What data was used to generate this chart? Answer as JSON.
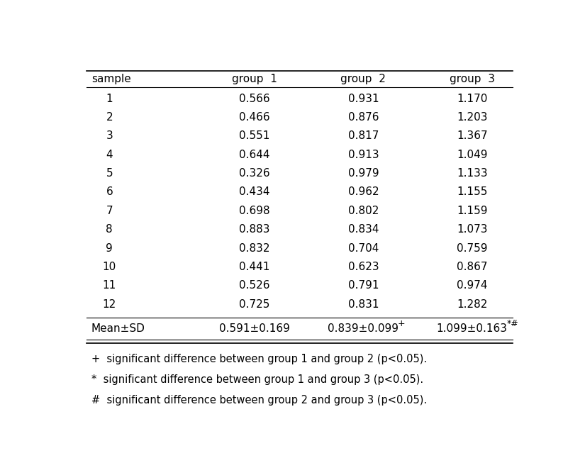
{
  "headers": [
    "sample",
    "group  1",
    "group  2",
    "group  3"
  ],
  "rows": [
    [
      "1",
      "0.566",
      "0.931",
      "1.170"
    ],
    [
      "2",
      "0.466",
      "0.876",
      "1.203"
    ],
    [
      "3",
      "0.551",
      "0.817",
      "1.367"
    ],
    [
      "4",
      "0.644",
      "0.913",
      "1.049"
    ],
    [
      "5",
      "0.326",
      "0.979",
      "1.133"
    ],
    [
      "6",
      "0.434",
      "0.962",
      "1.155"
    ],
    [
      "7",
      "0.698",
      "0.802",
      "1.159"
    ],
    [
      "8",
      "0.883",
      "0.834",
      "1.073"
    ],
    [
      "9",
      "0.832",
      "0.704",
      "0.759"
    ],
    [
      "10",
      "0.441",
      "0.623",
      "0.867"
    ],
    [
      "11",
      "0.526",
      "0.791",
      "0.974"
    ],
    [
      "12",
      "0.725",
      "0.831",
      "1.282"
    ]
  ],
  "mean_row_col0": "Mean±SD",
  "mean_row_col1": "0.591±0.169",
  "mean_row_col2_base": "0.839±0.099",
  "mean_row_col2_sup": "+",
  "mean_row_col3_base": "1.099±0.163",
  "mean_row_col3_sup": "*#",
  "footnotes": [
    "+  significant difference between group 1 and group 2 (p<0.05).",
    "*  significant difference between group 1 and group 3 (p<0.05).",
    "#  significant difference between group 2 and group 3 (p<0.05)."
  ],
  "font_size": 11,
  "footnote_font_size": 10.5,
  "background_color": "#ffffff",
  "text_color": "#000000",
  "line_color": "#000000"
}
